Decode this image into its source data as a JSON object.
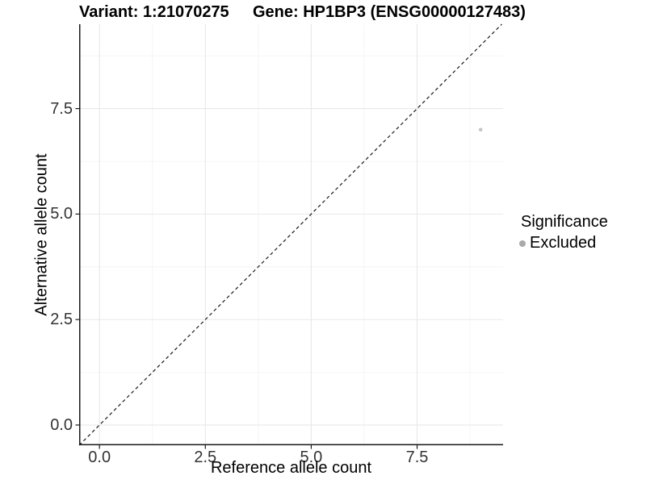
{
  "header": {
    "variant_label": "Variant: 1:21070275",
    "gene_label": "Gene: HP1BP3 (ENSG00000127483)"
  },
  "chart_data": {
    "type": "scatter",
    "title": "Variant: 1:21070275   Gene: HP1BP3 (ENSG00000127483)",
    "xlabel": "Reference allele count",
    "ylabel": "Alternative allele count",
    "xlim": [
      -0.48,
      9.53
    ],
    "ylim": [
      -0.48,
      9.5
    ],
    "x_ticks": {
      "values": [
        0,
        2.5,
        5,
        7.5
      ],
      "labels": [
        "0.0",
        "2.5",
        "5.0",
        "7.5"
      ]
    },
    "y_ticks": {
      "values": [
        0,
        2.5,
        5,
        7.5
      ],
      "labels": [
        "0.0",
        "2.5",
        "5.0",
        "7.5"
      ]
    },
    "x_minor": [
      1.25,
      3.75,
      6.25,
      8.75
    ],
    "y_minor": [
      1.25,
      3.75,
      6.25,
      8.75
    ],
    "grid": true,
    "identity_line": {
      "slope": 1,
      "intercept": 0,
      "style": "dashed"
    },
    "series": [
      {
        "name": "Excluded",
        "points": [
          {
            "x": 9,
            "y": 7
          }
        ]
      }
    ],
    "legend": {
      "title": "Significance",
      "position": "right",
      "items": [
        {
          "label": "Excluded",
          "marker": "circle",
          "color": "#a9a9a9"
        }
      ]
    },
    "colors": {
      "point": "#c4c4c4",
      "legend_dot": "#a9a9a9",
      "grid_major": "#e8e8e8",
      "grid_minor": "#f4f4f4",
      "axis_line": "#1a1a1a",
      "identity_line": "#1a1a1a",
      "tick_text": "#333333"
    }
  }
}
